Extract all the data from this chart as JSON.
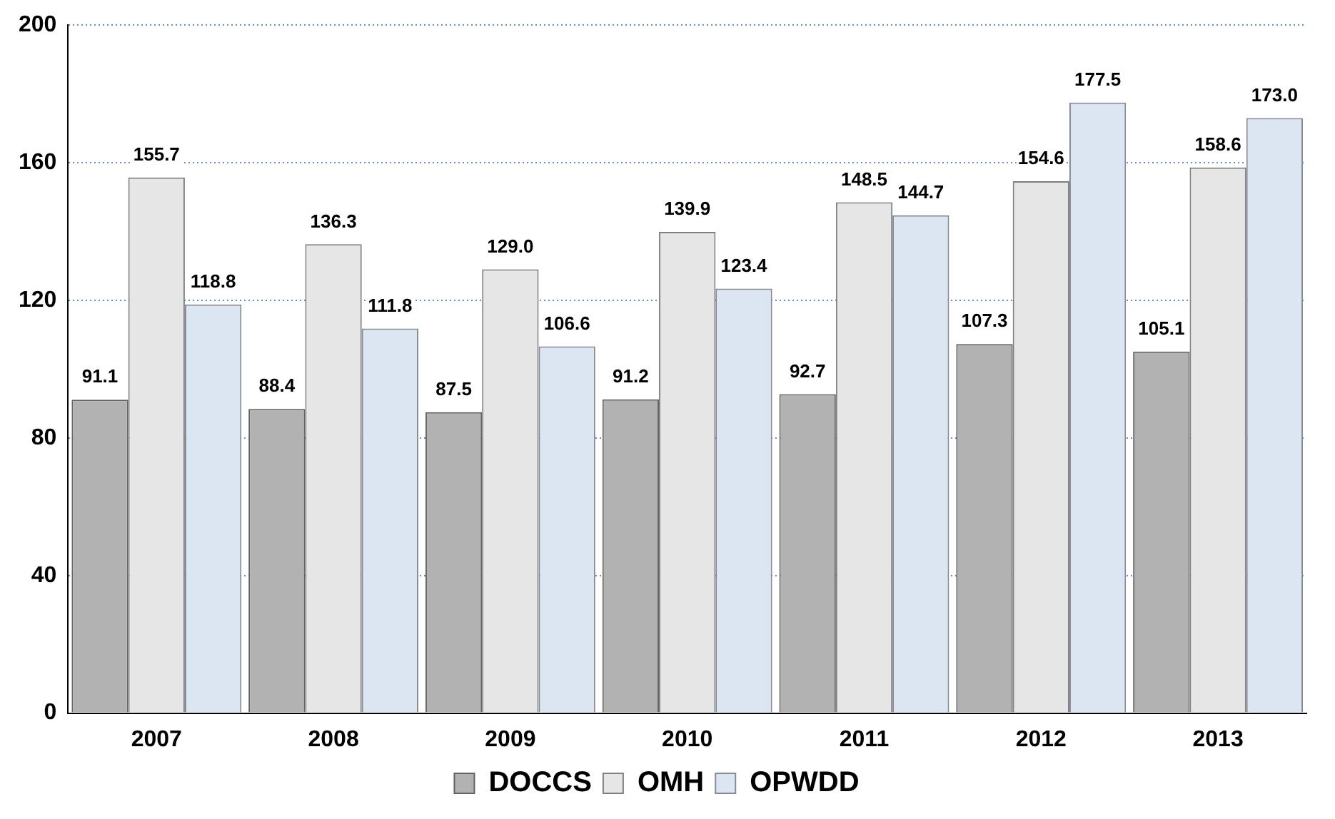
{
  "chart_data": {
    "type": "bar",
    "categories": [
      "2007",
      "2008",
      "2009",
      "2010",
      "2011",
      "2012",
      "2013"
    ],
    "series": [
      {
        "name": "DOCCS",
        "color": "#b2b2b2",
        "values": [
          91.1,
          88.4,
          87.5,
          91.2,
          92.7,
          107.3,
          105.1
        ],
        "value_labels": [
          "91.1",
          "88.4",
          "87.5",
          "91.2",
          "92.7",
          "107.3",
          "105.1"
        ]
      },
      {
        "name": "OMH",
        "color": "#e6e6e6",
        "values": [
          155.7,
          136.3,
          129.0,
          139.9,
          148.5,
          154.6,
          158.6
        ],
        "value_labels": [
          "155.7",
          "136.3",
          "129.0",
          "139.9",
          "148.5",
          "154.6",
          "158.6"
        ]
      },
      {
        "name": "OPWDD",
        "color": "#dce6f2",
        "values": [
          118.8,
          111.8,
          106.6,
          123.4,
          144.7,
          177.5,
          173.0
        ],
        "value_labels": [
          "118.8",
          "111.8",
          "106.6",
          "123.4",
          "144.7",
          "177.5",
          "173.0"
        ]
      }
    ],
    "ylim": [
      0,
      200
    ],
    "yticks": [
      0,
      40,
      80,
      120,
      160,
      200
    ],
    "grid": "y",
    "legend": "bottom"
  }
}
